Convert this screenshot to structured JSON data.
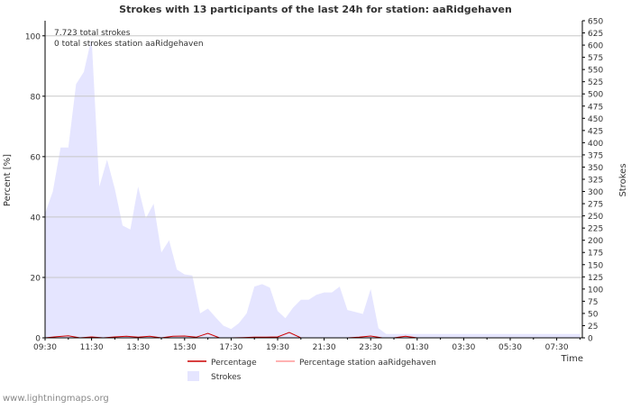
{
  "chart_data": {
    "type": "area",
    "title": "Strokes with 13 participants of the last 24h for station: aaRidgehaven",
    "xlabel": "Time",
    "ylabel_left": "Percent   [%]",
    "ylabel_right": "Strokes",
    "ylim_left": [
      0,
      105
    ],
    "ylim_right": [
      0,
      650
    ],
    "yticks_left": [
      0,
      20,
      40,
      60,
      80,
      100
    ],
    "yticks_right": [
      0,
      25,
      50,
      75,
      100,
      125,
      150,
      175,
      200,
      225,
      250,
      275,
      300,
      325,
      350,
      375,
      400,
      425,
      450,
      475,
      500,
      525,
      550,
      575,
      600,
      625,
      650
    ],
    "xticks": [
      "09:30",
      "11:30",
      "13:30",
      "15:30",
      "17:30",
      "19:30",
      "21:30",
      "23:30",
      "01:30",
      "03:30",
      "05:30",
      "07:30"
    ],
    "grid": true,
    "annotations": [
      "7.723 total strokes",
      "0 total strokes station aaRidgehaven"
    ],
    "legend": [
      "Percentage",
      "Percentage station aaRidgehaven",
      "Strokes"
    ],
    "colors": {
      "strokes_fill": "#e5e5ff",
      "percentage": "#cc0000",
      "percentage_station": "#ff9999",
      "grid": "#c8c8c8",
      "axis": "#000000",
      "text": "#333333"
    },
    "series": [
      {
        "name": "Strokes",
        "axis": "right",
        "x": [
          0,
          0.333,
          0.667,
          1,
          1.333,
          1.667,
          2,
          2.333,
          2.667,
          3,
          3.333,
          3.667,
          4,
          4.333,
          4.667,
          5,
          5.333,
          5.667,
          6,
          6.333,
          6.667,
          7,
          7.333,
          7.667,
          8,
          8.333,
          8.667,
          9,
          9.333,
          9.667,
          10,
          10.333,
          10.667,
          11,
          11.333,
          11.667,
          12,
          12.333,
          12.667,
          13,
          13.333,
          13.667,
          14,
          14.333,
          14.667,
          15,
          15.333,
          15.667,
          16,
          16.333,
          16.667,
          17,
          17.333,
          17.667,
          18,
          18.333,
          18.667,
          19,
          19.333,
          19.667,
          20,
          20.333,
          20.667,
          21,
          21.333,
          21.667,
          22,
          22.333,
          22.667,
          23
        ],
        "values": [
          255,
          300,
          390,
          390,
          520,
          545,
          615,
          310,
          365,
          305,
          230,
          222,
          310,
          245,
          275,
          175,
          200,
          140,
          130,
          128,
          50,
          60,
          42,
          25,
          18,
          30,
          50,
          105,
          110,
          103,
          55,
          40,
          62,
          78,
          78,
          88,
          93,
          93,
          105,
          57,
          53,
          49,
          100,
          20,
          8,
          8,
          8,
          8,
          8,
          8,
          8,
          8,
          8,
          8,
          8,
          8,
          8,
          8,
          8,
          8,
          8,
          8,
          8,
          8,
          8,
          8,
          8,
          8,
          8,
          8
        ]
      },
      {
        "name": "Percentage",
        "axis": "left",
        "x": [
          0,
          0.5,
          1,
          1.5,
          2,
          2.5,
          3,
          3.5,
          4,
          4.5,
          5,
          5.5,
          6,
          6.5,
          7,
          7.5,
          8,
          8.5,
          9,
          9.5,
          10,
          10.5,
          11,
          11.5,
          12,
          12.5,
          13,
          13.5,
          14,
          14.5,
          15,
          15.5,
          16,
          16.5,
          17,
          17.5,
          18,
          18.5,
          19
        ],
        "values": [
          0,
          0.4,
          0.7,
          0,
          0.3,
          0,
          0.3,
          0.5,
          0.2,
          0.5,
          0,
          0.5,
          0.6,
          0.2,
          1.5,
          0,
          0,
          0.1,
          0.2,
          0.2,
          0.3,
          1.8,
          0,
          0,
          0,
          0,
          0,
          0.2,
          0.6,
          0,
          0,
          0.5,
          0,
          0,
          0,
          0,
          0,
          0,
          0
        ]
      },
      {
        "name": "Percentage station aaRidgehaven",
        "axis": "left",
        "x": [
          0,
          19
        ],
        "values": [
          0,
          0
        ]
      }
    ]
  },
  "footer": {
    "watermark": "www.lightningmaps.org"
  }
}
